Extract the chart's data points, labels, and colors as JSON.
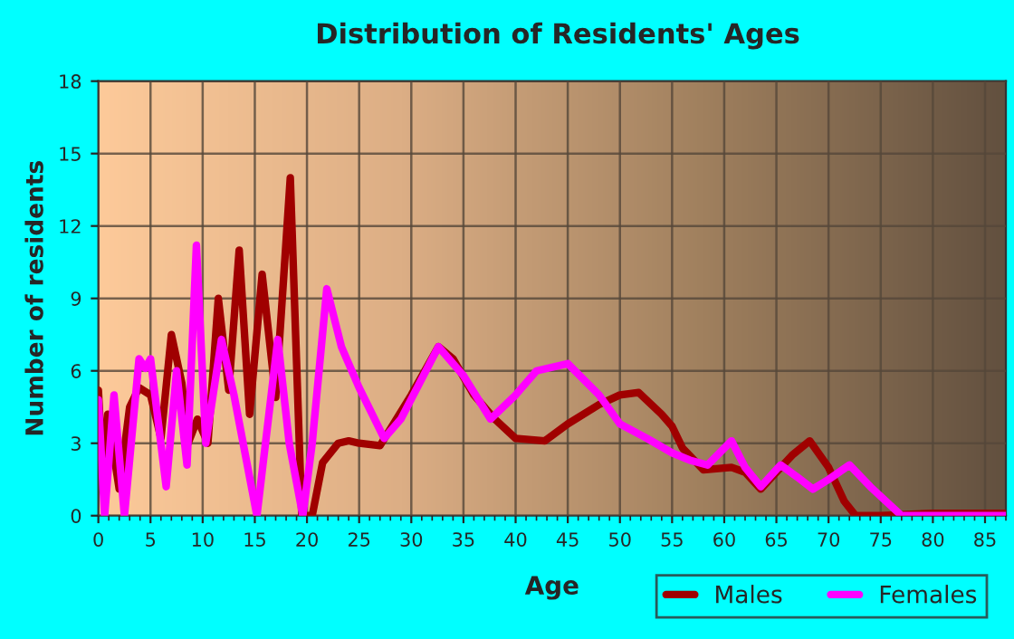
{
  "chart_data": {
    "type": "line",
    "title": "Distribution of Residents' Ages",
    "xlabel": "Age",
    "ylabel": "Number of residents",
    "xlim": [
      0,
      87
    ],
    "ylim": [
      0,
      18
    ],
    "xticks": [
      0,
      5,
      10,
      15,
      20,
      25,
      30,
      35,
      40,
      45,
      50,
      55,
      60,
      65,
      70,
      75,
      80,
      85
    ],
    "yticks": [
      0,
      3,
      6,
      9,
      12,
      15,
      18
    ],
    "grid": true,
    "legend": "bottom right",
    "marker": "none",
    "line_style": "solid",
    "series": [
      {
        "name": "Males",
        "color": "#a00000",
        "x": [
          0,
          0.5,
          0.9,
          2,
          3,
          3.9,
          5,
          6,
          7,
          8,
          8.6,
          9.5,
          10.5,
          11.5,
          12.5,
          13.5,
          14.5,
          15.7,
          17,
          18.4,
          19.5,
          20.5,
          21.5,
          23,
          24,
          25,
          27,
          30,
          32.6,
          34,
          36,
          38,
          40,
          42.8,
          45,
          48,
          50,
          51.8,
          54,
          55,
          56,
          58,
          60.7,
          62,
          63.5,
          65,
          66.5,
          68.2,
          70,
          71.5,
          72.6,
          75,
          80,
          87
        ],
        "values": [
          5.2,
          1.2,
          4.2,
          1.1,
          4.5,
          5.3,
          5,
          3.2,
          7.5,
          5.5,
          3,
          4,
          3,
          9,
          5.2,
          11,
          4.2,
          10,
          4.9,
          14,
          0,
          0,
          2.2,
          3,
          3.1,
          3,
          2.9,
          5,
          7,
          6.5,
          5,
          4,
          3.2,
          3.1,
          3.8,
          4.6,
          5,
          5.1,
          4.2,
          3.7,
          2.8,
          1.9,
          2,
          1.8,
          1.1,
          1.8,
          2.5,
          3.1,
          2,
          0.6,
          0,
          0,
          0.1,
          0.1
        ]
      },
      {
        "name": "Females",
        "color": "#ff00ff",
        "x": [
          0,
          0.6,
          1.5,
          2.5,
          3.9,
          4.5,
          5,
          6.5,
          7.5,
          8.5,
          9.4,
          10.3,
          11.8,
          13,
          15.2,
          17.2,
          18.3,
          19.6,
          20.5,
          21.9,
          23.3,
          25,
          27.4,
          29,
          32.6,
          35,
          37.6,
          40,
          42,
          45,
          48,
          50,
          52.6,
          55,
          56.7,
          58.4,
          60.7,
          62,
          63.5,
          65.4,
          67,
          68.5,
          70,
          72,
          74,
          77,
          80,
          87
        ],
        "values": [
          4.8,
          0,
          5,
          0,
          6.5,
          6.1,
          6.5,
          1.2,
          6,
          2.1,
          11.2,
          3,
          7.3,
          5,
          0,
          7.3,
          3,
          0,
          3,
          9.4,
          7,
          5.3,
          3.2,
          4,
          7,
          5.8,
          4,
          5,
          6,
          6.3,
          5,
          3.8,
          3.2,
          2.6,
          2.3,
          2.1,
          3.1,
          2,
          1.2,
          2.1,
          1.6,
          1.1,
          1.5,
          2.1,
          1.2,
          0,
          0,
          0
        ]
      }
    ]
  }
}
